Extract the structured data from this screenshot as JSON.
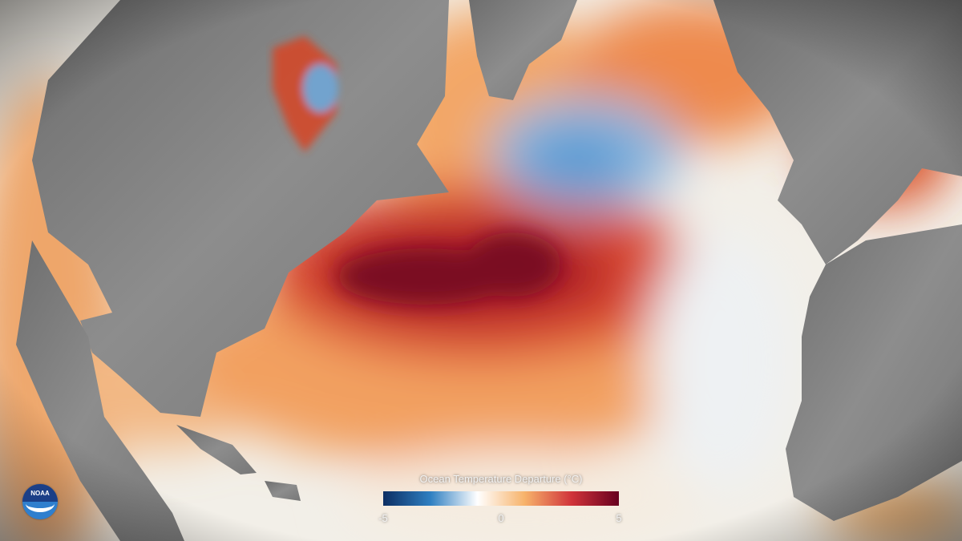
{
  "legend": {
    "title": "Ocean Temperature Departure (°C)",
    "ticks": [
      "-5",
      "0",
      "5"
    ],
    "min": -5,
    "max": 5,
    "colors": [
      "#0c2e63",
      "#2f7fc1",
      "#ffffff",
      "#f7b36b",
      "#d0333a",
      "#67001f"
    ]
  },
  "logo": {
    "text": "NOAA"
  },
  "colors": {
    "land": "#8a8a8a",
    "warm": "#c2271f",
    "cool": "#4a90d0",
    "neutral": "#f3f0ea"
  }
}
